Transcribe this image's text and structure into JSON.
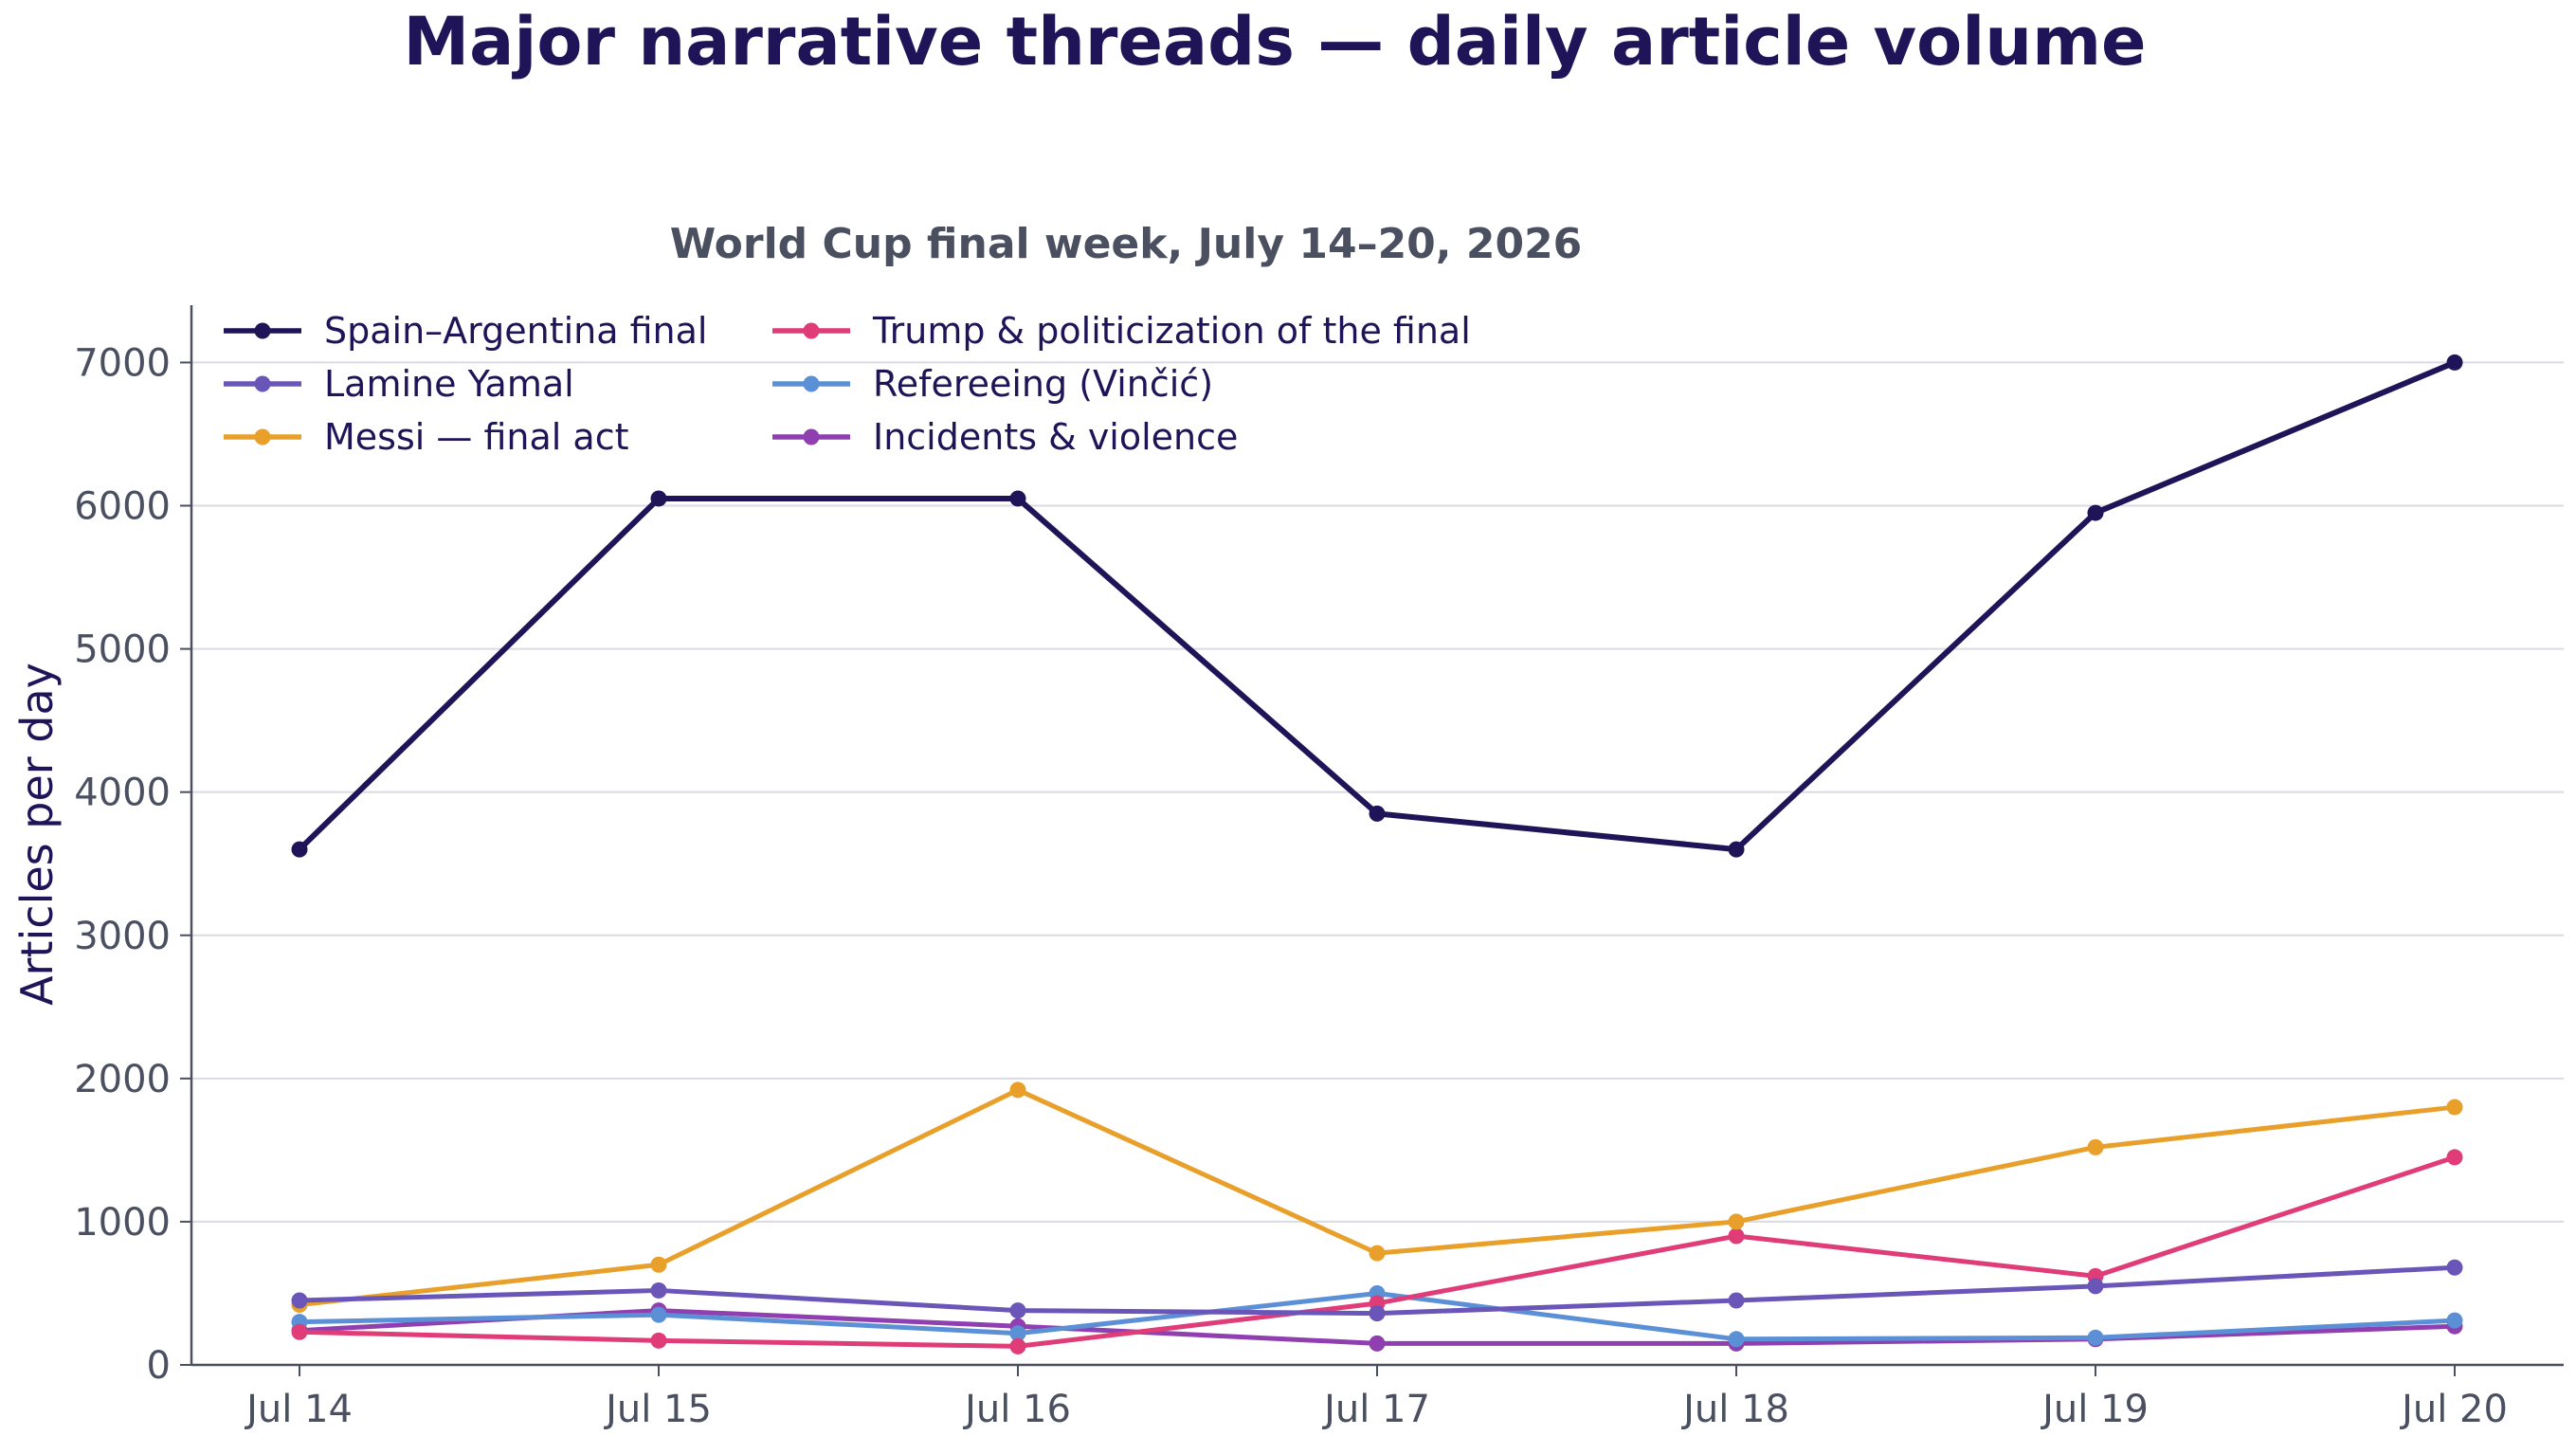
{
  "chart_data": {
    "type": "line",
    "title": "Major narrative threads — daily article volume",
    "subtitle": "World Cup final week, July 14–20, 2026",
    "xlabel": "",
    "ylabel": "Articles per day",
    "categories": [
      "Jul 14",
      "Jul 15",
      "Jul 16",
      "Jul 17",
      "Jul 18",
      "Jul 19",
      "Jul 20"
    ],
    "ylim": [
      0,
      7400
    ],
    "yticks": [
      0,
      1000,
      2000,
      3000,
      4000,
      5000,
      6000,
      7000
    ],
    "grid": "horizontal",
    "legend_position": "top-left",
    "series": [
      {
        "name": "Spain–Argentina final",
        "color": "#1f1458",
        "values": [
          3600,
          6050,
          6050,
          3850,
          3600,
          5950,
          7000
        ]
      },
      {
        "name": "Lamine Yamal",
        "color": "#6a55b8",
        "values": [
          450,
          520,
          380,
          360,
          450,
          550,
          680
        ]
      },
      {
        "name": "Messi — final act",
        "color": "#e8a02a",
        "values": [
          420,
          700,
          1920,
          780,
          1000,
          1520,
          1800
        ]
      },
      {
        "name": "Trump & politicization of the final",
        "color": "#e03c78",
        "values": [
          230,
          170,
          130,
          430,
          900,
          620,
          1450
        ]
      },
      {
        "name": "Refereeing (Vinčić)",
        "color": "#5b8fd6",
        "values": [
          300,
          350,
          220,
          500,
          180,
          190,
          310
        ]
      },
      {
        "name": "Incidents & violence",
        "color": "#8f3fb0",
        "values": [
          240,
          380,
          270,
          150,
          150,
          180,
          270
        ]
      }
    ]
  }
}
